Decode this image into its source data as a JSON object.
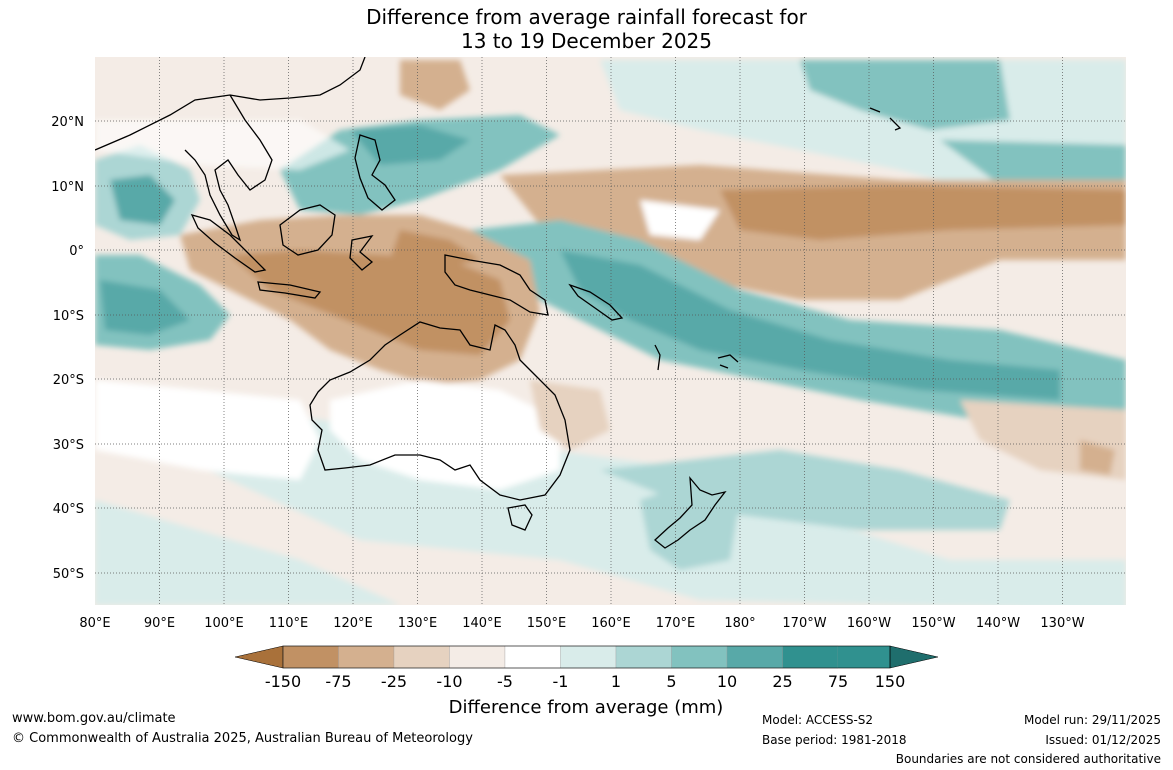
{
  "title_line1": "Difference from average rainfall forecast for",
  "title_line2": "13 to 19 December 2025",
  "lat_labels": [
    "20°N",
    "10°N",
    "0°",
    "10°S",
    "20°S",
    "30°S",
    "40°S",
    "50°S"
  ],
  "lon_labels": [
    "80°E",
    "90°E",
    "100°E",
    "110°E",
    "120°E",
    "130°E",
    "140°E",
    "150°E",
    "160°E",
    "170°E",
    "180°",
    "170°W",
    "160°W",
    "150°W",
    "140°W",
    "130°W"
  ],
  "legend": {
    "ticks": [
      "-150",
      "-75",
      "-25",
      "-10",
      "-5",
      "-1",
      "1",
      "5",
      "10",
      "25",
      "75",
      "150"
    ],
    "colors": [
      "#a9713a",
      "#c19164",
      "#d4b08f",
      "#e6d2c0",
      "#f4ece6",
      "#ffffff",
      "#d9ecea",
      "#acd6d4",
      "#82c2bf",
      "#58a9a8",
      "#30918f",
      "#1f6e6d"
    ],
    "label": "Difference from average (mm)"
  },
  "footer": {
    "website": "www.bom.gov.au/climate",
    "copyright": "© Commonwealth of Australia 2025, Australian Bureau of Meteorology",
    "model": "Model: ACCESS-S2",
    "base_period": "Base period: 1981-2018",
    "model_run": "Model run: 29/11/2025",
    "issued": "Issued: 01/12/2025",
    "boundaries": "Boundaries are not considered authoritative"
  }
}
